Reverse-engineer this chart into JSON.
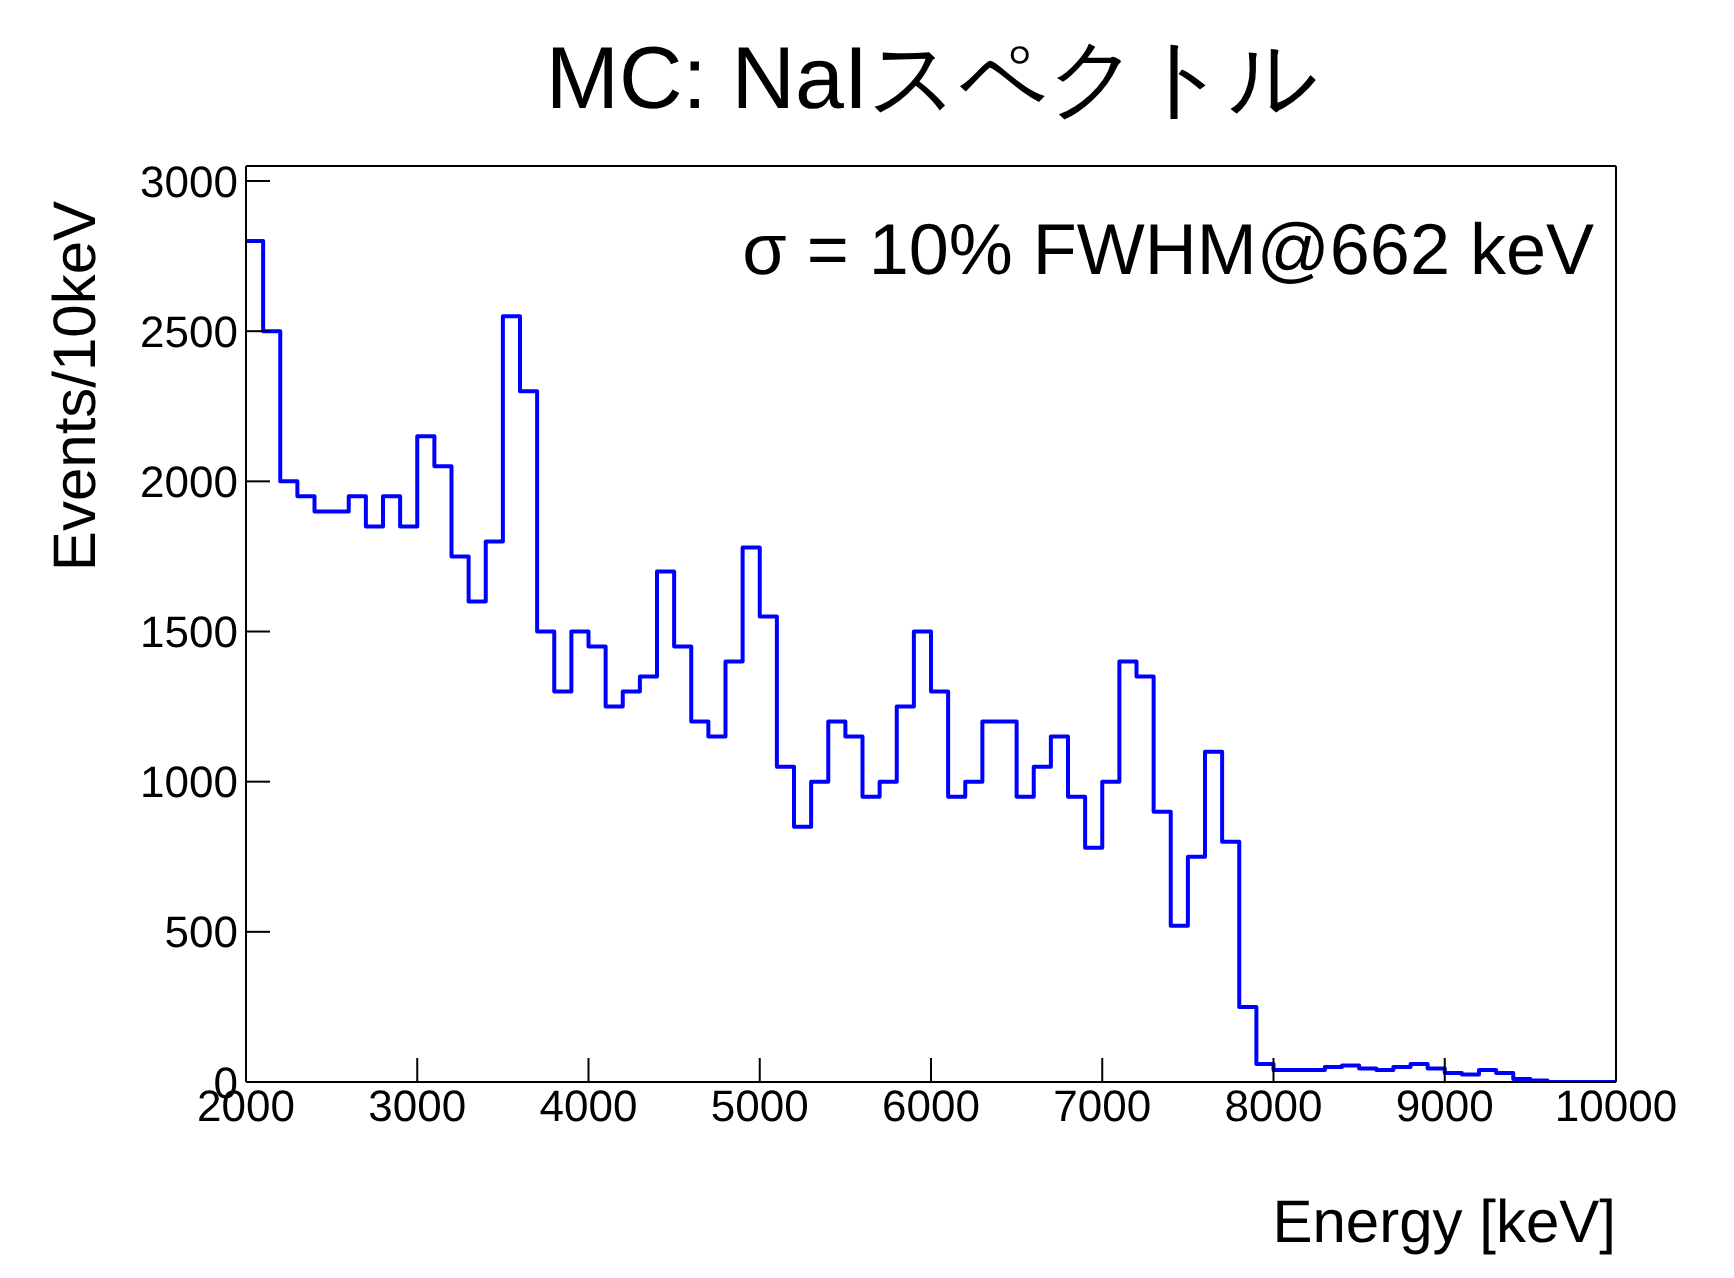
{
  "chart_data": {
    "type": "histogram",
    "title": "MC: NaIスペクトル",
    "xlabel": "Energy [keV]",
    "ylabel": "Events/10keV",
    "annotations": [
      "σ = 10% FWHM@662 keV"
    ],
    "color": "#0000ff",
    "bins": [
      2000,
      2100,
      2200,
      2300,
      2400,
      2500,
      2600,
      2700,
      2800,
      2900,
      3000,
      3100,
      3200,
      3300,
      3400,
      3500,
      3600,
      3700,
      3800,
      3900,
      4000,
      4100,
      4200,
      4300,
      4400,
      4500,
      4600,
      4700,
      4800,
      4900,
      5000,
      5100,
      5200,
      5300,
      5400,
      5500,
      5600,
      5700,
      5800,
      5900,
      6000,
      6100,
      6200,
      6300,
      6400,
      6500,
      6600,
      6700,
      6800,
      6900,
      7000,
      7100,
      7200,
      7300,
      7400,
      7500,
      7600,
      7700,
      7800,
      7900,
      8000,
      8100,
      8200,
      8300,
      8400,
      8500,
      8600,
      8700,
      8800,
      8900,
      9000,
      9100,
      9200,
      9300,
      9400,
      9500,
      9600,
      9700,
      9800,
      9900,
      10000
    ],
    "values": [
      2800,
      2500,
      2000,
      1950,
      1900,
      1900,
      1950,
      1850,
      1950,
      1850,
      2150,
      2050,
      1750,
      1600,
      1800,
      2550,
      2300,
      1500,
      1300,
      1500,
      1450,
      1250,
      1300,
      1350,
      1700,
      1450,
      1200,
      1150,
      1400,
      1780,
      1550,
      1050,
      850,
      1000,
      1200,
      1150,
      950,
      1000,
      1250,
      1500,
      1300,
      950,
      1000,
      1200,
      1200,
      950,
      1050,
      1150,
      950,
      780,
      1000,
      1400,
      1350,
      900,
      520,
      750,
      1100,
      800,
      250,
      60,
      40,
      40,
      40,
      50,
      55,
      45,
      40,
      50,
      60,
      45,
      30,
      25,
      40,
      30,
      10,
      5,
      0,
      0,
      0,
      0
    ],
    "xlim": [
      2000,
      10000
    ],
    "xticks": [
      2000,
      3000,
      4000,
      5000,
      6000,
      7000,
      8000,
      9000,
      10000
    ],
    "ylim": [
      0,
      3050
    ],
    "yticks": [
      0,
      500,
      1000,
      1500,
      2000,
      2500,
      3000
    ]
  }
}
